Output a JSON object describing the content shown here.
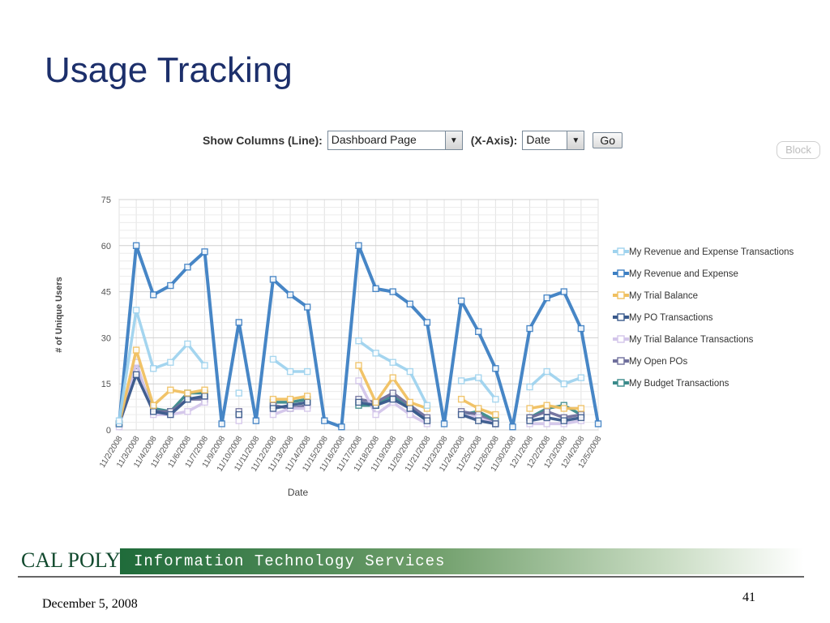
{
  "slide": {
    "title": "Usage Tracking",
    "date": "December 5, 2008",
    "page_number": "41"
  },
  "controls": {
    "show_columns_label": "Show Columns (Line):",
    "show_columns_value": "Dashboard Page",
    "x_axis_label": "(X-Axis):",
    "x_axis_value": "Date",
    "go_label": "Go",
    "block_label": "Block"
  },
  "footer": {
    "logo_text": "CAL POLY",
    "banner_text": "Information Technology Services"
  },
  "chart_data": {
    "type": "line",
    "xlabel": "Date",
    "ylabel": "# of Unique Users",
    "ylim": [
      0,
      75
    ],
    "yticks": [
      0,
      15,
      30,
      45,
      60,
      75
    ],
    "grid": true,
    "legend_position": "right",
    "categories": [
      "11/2/2008",
      "11/3/2008",
      "11/4/2008",
      "11/5/2008",
      "11/6/2008",
      "11/7/2008",
      "11/9/2008",
      "11/10/2008",
      "11/11/2008",
      "11/12/2008",
      "11/13/2008",
      "11/14/2008",
      "11/15/2008",
      "11/16/2008",
      "11/17/2008",
      "11/18/2008",
      "11/19/2008",
      "11/20/2008",
      "11/21/2008",
      "11/23/2008",
      "11/24/2008",
      "11/25/2008",
      "11/26/2008",
      "11/30/2008",
      "12/1/2008",
      "12/2/2008",
      "12/3/2008",
      "12/4/2008",
      "12/5/2008"
    ],
    "series": [
      {
        "name": "My Revenue and Expense Transactions",
        "color": "#9fd3ee",
        "values": [
          3,
          39,
          20,
          22,
          28,
          21,
          null,
          12,
          null,
          23,
          19,
          19,
          null,
          null,
          29,
          25,
          22,
          19,
          8,
          null,
          16,
          17,
          10,
          null,
          14,
          19,
          15,
          17,
          null
        ]
      },
      {
        "name": "My Revenue and Expense",
        "color": "#3d7fc3",
        "values": [
          2,
          60,
          44,
          47,
          53,
          58,
          2,
          35,
          3,
          49,
          44,
          40,
          3,
          1,
          60,
          46,
          45,
          41,
          35,
          2,
          42,
          32,
          20,
          1,
          33,
          43,
          45,
          33,
          2
        ]
      },
      {
        "name": "My Trial Balance",
        "color": "#f0c060",
        "values": [
          2,
          26,
          8,
          13,
          12,
          13,
          null,
          null,
          null,
          10,
          10,
          11,
          null,
          null,
          21,
          9,
          17,
          9,
          7,
          null,
          10,
          7,
          5,
          null,
          7,
          8,
          7,
          7,
          null
        ]
      },
      {
        "name": "My PO Transactions",
        "color": "#3a5a8c",
        "values": [
          2,
          18,
          6,
          5,
          10,
          11,
          null,
          5,
          null,
          7,
          8,
          9,
          null,
          null,
          9,
          8,
          10,
          7,
          3,
          null,
          5,
          3,
          2,
          null,
          3,
          4,
          3,
          4,
          null
        ]
      },
      {
        "name": "My Trial Balance Transactions",
        "color": "#d3c5ea",
        "values": [
          1,
          22,
          5,
          5,
          6,
          9,
          null,
          3,
          null,
          5,
          7,
          7,
          null,
          null,
          16,
          5,
          9,
          5,
          2,
          null,
          5,
          4,
          2,
          null,
          2,
          2,
          2,
          3,
          null
        ]
      },
      {
        "name": "My Open POs",
        "color": "#6f6f9c",
        "values": [
          2,
          19,
          6,
          6,
          10,
          10,
          null,
          6,
          null,
          8,
          7,
          8,
          null,
          null,
          10,
          9,
          12,
          8,
          4,
          null,
          6,
          5,
          2,
          null,
          4,
          6,
          4,
          5,
          null
        ]
      },
      {
        "name": "My Budget Transactions",
        "color": "#3a8a8a",
        "values": [
          2,
          20,
          7,
          6,
          12,
          12,
          null,
          5,
          null,
          9,
          9,
          10,
          null,
          null,
          8,
          8,
          11,
          7,
          3,
          null,
          5,
          6,
          3,
          null,
          4,
          7,
          8,
          5,
          null
        ]
      }
    ]
  }
}
